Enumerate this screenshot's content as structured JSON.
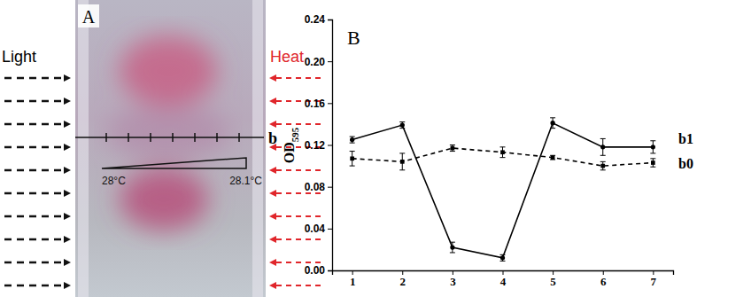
{
  "photo": {
    "label": "A",
    "left_label": "Light",
    "right_label": "Heat",
    "line_label": "b",
    "temp_low": "28°C",
    "temp_high": "28.1°C"
  },
  "chart_data": {
    "type": "line",
    "title": "B",
    "y_label": "OD",
    "y_label_subscript": "595",
    "x": [
      1,
      2,
      3,
      4,
      5,
      6,
      7
    ],
    "xlim": [
      0.6,
      7.4
    ],
    "xticks": [
      1,
      2,
      3,
      4,
      5,
      6,
      7
    ],
    "ylim": [
      0,
      0.24
    ],
    "yticks": [
      {
        "value": 0,
        "label": "0.00"
      },
      {
        "value": 0.04,
        "label": "0.04"
      },
      {
        "value": 0.08,
        "label": "0.08"
      },
      {
        "value": 0.12,
        "label": "0.12"
      },
      {
        "value": 0.16,
        "label": "0.16"
      },
      {
        "value": 0.2,
        "label": "0.20"
      },
      {
        "value": 0.24,
        "label": "0.24"
      }
    ],
    "series": [
      {
        "name": "b1",
        "color": "#000000",
        "marker": "circle",
        "line_style": "solid",
        "values": [
          0.125,
          0.139,
          0.022,
          0.012,
          0.141,
          0.118,
          0.118
        ],
        "errors": [
          0.003,
          0.003,
          0.005,
          0.003,
          0.005,
          0.008,
          0.006
        ]
      },
      {
        "name": "b0",
        "color": "#000000",
        "marker": "square",
        "line_style": "dashed",
        "values": [
          0.107,
          0.104,
          0.117,
          0.113,
          0.108,
          0.1,
          0.103
        ],
        "errors": [
          0.007,
          0.008,
          0.003,
          0.005,
          0.002,
          0.004,
          0.004
        ]
      }
    ]
  }
}
